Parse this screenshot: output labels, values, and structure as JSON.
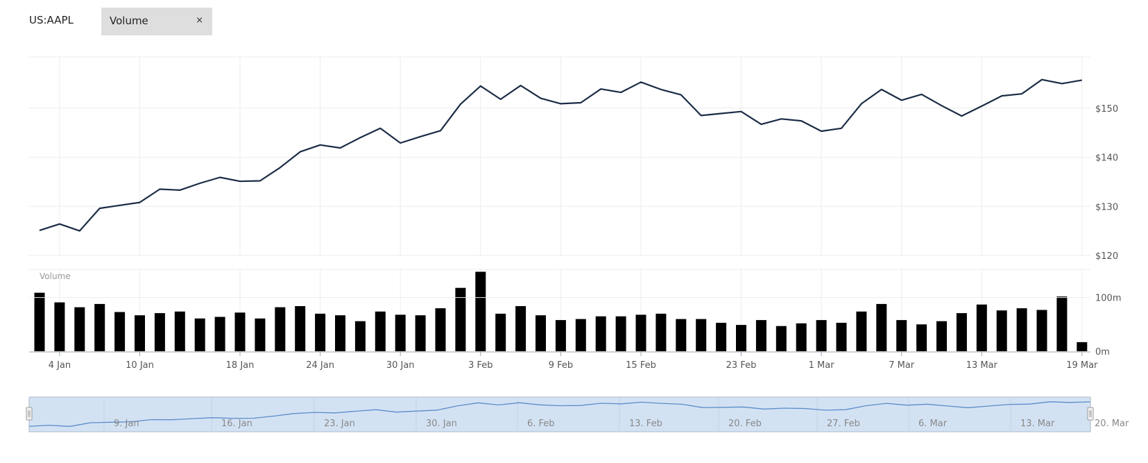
{
  "header": {
    "ticker": "US:AAPL",
    "indicator_tag": "Volume",
    "close_symbol": "×"
  },
  "volume_panel_label": "Volume",
  "chart_data": {
    "type": "line",
    "title": "",
    "price": {
      "ylim": [
        120,
        160
      ],
      "yticks": [
        120,
        130,
        140,
        150
      ],
      "ytick_labels": [
        "$120",
        "$130",
        "$140",
        "$150"
      ],
      "values": [
        125.1,
        126.4,
        125.0,
        129.6,
        130.2,
        130.8,
        133.5,
        133.3,
        134.7,
        135.9,
        135.1,
        135.2,
        137.9,
        141.1,
        142.5,
        141.9,
        144.0,
        145.9,
        142.9,
        144.2,
        145.4,
        150.8,
        154.5,
        151.8,
        154.6,
        152.0,
        150.9,
        151.1,
        153.9,
        153.2,
        155.3,
        153.8,
        152.7,
        148.5,
        148.9,
        149.3,
        146.7,
        147.8,
        147.4,
        145.3,
        145.9,
        150.9,
        153.8,
        151.6,
        152.8,
        150.5,
        148.4,
        150.4,
        152.5,
        152.9,
        155.8,
        155.0,
        155.7
      ],
      "color": "#1a2b44"
    },
    "volume": {
      "ylim": [
        0,
        150
      ],
      "yticks": [
        0,
        100
      ],
      "ytick_labels": [
        "0m",
        "100m"
      ],
      "values": [
        109,
        91,
        82,
        88,
        73,
        67,
        71,
        74,
        61,
        64,
        72,
        61,
        82,
        84,
        70,
        67,
        56,
        74,
        68,
        67,
        80,
        118,
        148,
        70,
        84,
        67,
        58,
        60,
        65,
        65,
        68,
        70,
        60,
        60,
        53,
        49,
        58,
        47,
        52,
        58,
        53,
        74,
        88,
        58,
        50,
        56,
        71,
        87,
        76,
        80,
        77,
        102,
        17
      ],
      "color": "#000000"
    },
    "x_ticks": [
      {
        "i": 1,
        "label": "4 Jan"
      },
      {
        "i": 5,
        "label": "10 Jan"
      },
      {
        "i": 10,
        "label": "18 Jan"
      },
      {
        "i": 14,
        "label": "24 Jan"
      },
      {
        "i": 18,
        "label": "30 Jan"
      },
      {
        "i": 22,
        "label": "3 Feb"
      },
      {
        "i": 26,
        "label": "9 Feb"
      },
      {
        "i": 30,
        "label": "15 Feb"
      },
      {
        "i": 35,
        "label": "23 Feb"
      },
      {
        "i": 39,
        "label": "1 Mar"
      },
      {
        "i": 43,
        "label": "7 Mar"
      },
      {
        "i": 47,
        "label": "13 Mar"
      },
      {
        "i": 52,
        "label": "19 Mar"
      }
    ],
    "navigator": {
      "labels": [
        "9. Jan",
        "16. Jan",
        "23. Jan",
        "30. Jan",
        "6. Feb",
        "13. Feb",
        "20. Feb",
        "27. Feb",
        "6. Mar",
        "13. Mar",
        "20. Mar"
      ],
      "fill": "#d3e2f3",
      "line_color": "#5b8cc8"
    },
    "grid": true
  }
}
